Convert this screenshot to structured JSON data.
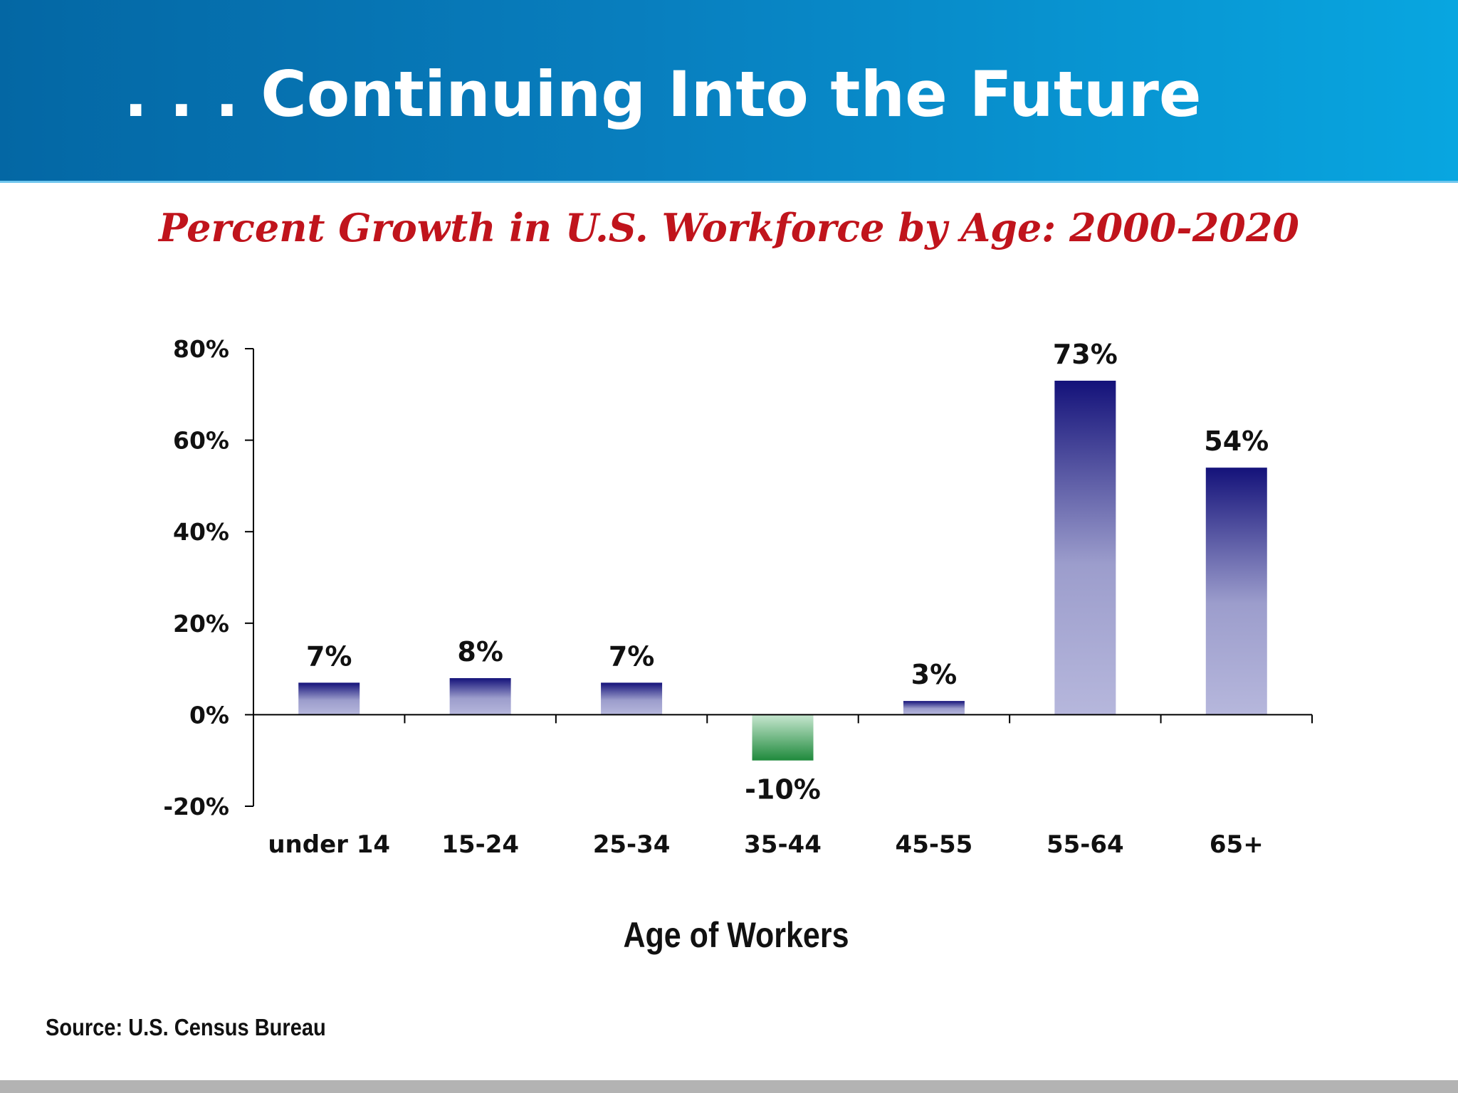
{
  "header": {
    "title": ". . . Continuing Into the Future",
    "background_color": "#0467a4"
  },
  "source_note": "Source: U.S. Census Bureau",
  "chart_data": {
    "type": "bar",
    "title": "Percent Growth in U.S. Workforce by Age: 2000-2020",
    "xlabel": "Age of Workers",
    "ylabel": "",
    "categories": [
      "under 14",
      "15-24",
      "25-34",
      "35-44",
      "45-55",
      "55-64",
      "65+"
    ],
    "values": [
      7,
      8,
      7,
      -10,
      3,
      73,
      54
    ],
    "data_labels": [
      "7%",
      "8%",
      "7%",
      "-10%",
      "3%",
      "73%",
      "54%"
    ],
    "ylim": [
      -20,
      80
    ],
    "yticks": [
      -20,
      0,
      20,
      40,
      60,
      80
    ],
    "ytick_labels": [
      "-20%",
      "0%",
      "20%",
      "40%",
      "60%",
      "80%"
    ],
    "grid": false,
    "legend": "none",
    "colors": {
      "positive_top": "#14127a",
      "positive_bottom": "#b6b7dc",
      "negative_top": "#c7e7d0",
      "negative_bottom": "#1f8a3c",
      "title": "#c0141c"
    }
  }
}
